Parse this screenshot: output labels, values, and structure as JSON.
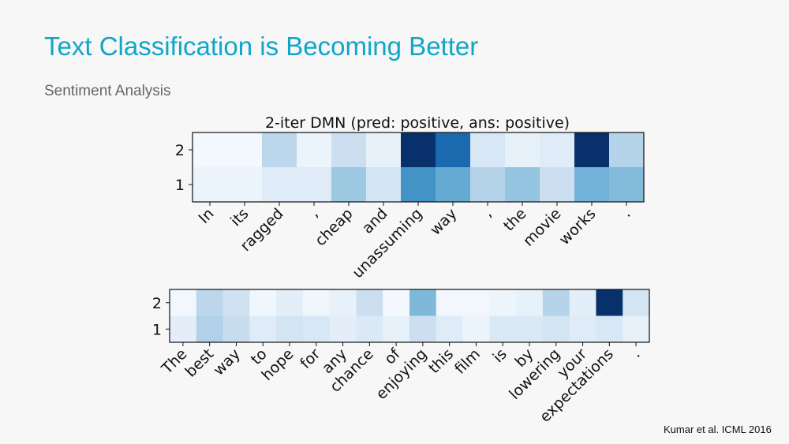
{
  "slide": {
    "title": "Text Classification is Becoming Better",
    "subtitle": "Sentiment Analysis",
    "citation": "Kumar et al. ICML 2016"
  },
  "chart_data": [
    {
      "type": "heatmap",
      "title": "2-iter DMN (pred: positive, ans: positive)",
      "x_categories": [
        "In",
        "its",
        "ragged",
        ",",
        "cheap",
        "and",
        "unassuming",
        "way",
        ",",
        "the",
        "movie",
        "works",
        "."
      ],
      "y_categories": [
        "2",
        "1"
      ],
      "values": [
        [
          0.02,
          0.02,
          0.28,
          0.06,
          0.22,
          0.08,
          1.0,
          0.78,
          0.16,
          0.08,
          0.12,
          1.0,
          0.3
        ],
        [
          0.06,
          0.06,
          0.12,
          0.12,
          0.38,
          0.18,
          0.62,
          0.52,
          0.3,
          0.4,
          0.22,
          0.48,
          0.44
        ]
      ],
      "colormap": "Blues"
    },
    {
      "type": "heatmap",
      "title": "",
      "x_categories": [
        "The",
        "best",
        "way",
        "to",
        "hope",
        "for",
        "any",
        "chance",
        "of",
        "enjoying",
        "this",
        "film",
        "is",
        "by",
        "lowering",
        "your",
        "expectations",
        "."
      ],
      "y_categories": [
        "2",
        "1"
      ],
      "values": [
        [
          0.03,
          0.28,
          0.2,
          0.04,
          0.1,
          0.04,
          0.08,
          0.22,
          0.02,
          0.45,
          0.03,
          0.03,
          0.05,
          0.08,
          0.3,
          0.1,
          1.0,
          0.18
        ],
        [
          0.1,
          0.32,
          0.24,
          0.12,
          0.18,
          0.16,
          0.1,
          0.14,
          0.08,
          0.22,
          0.12,
          0.06,
          0.14,
          0.14,
          0.18,
          0.12,
          0.16,
          0.08
        ]
      ],
      "colormap": "Blues"
    }
  ]
}
